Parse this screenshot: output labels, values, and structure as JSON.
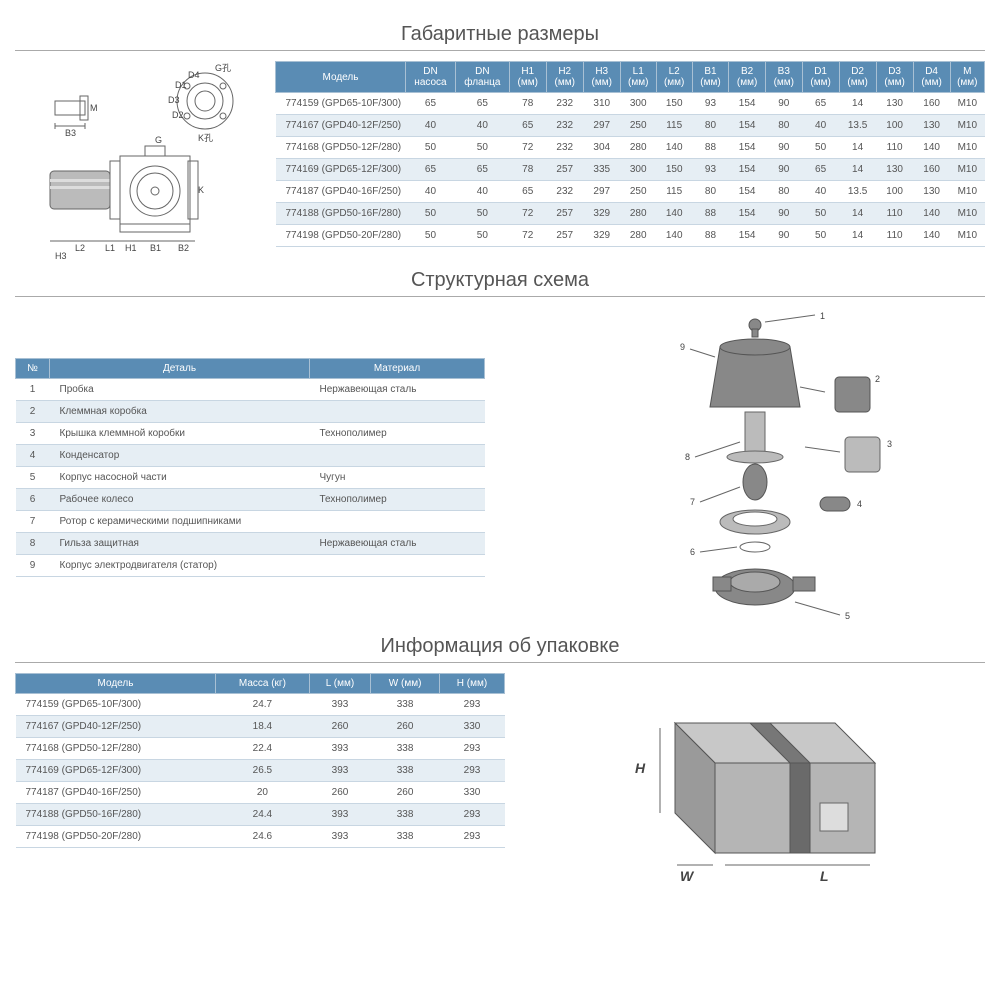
{
  "colors": {
    "header_bg": "#5a8cb4",
    "header_text": "#ffffff",
    "row_alt_bg": "#e6eef4",
    "border": "#c8d6e2",
    "title_text": "#555555",
    "body_text": "#555555"
  },
  "section1": {
    "title": "Габаритные размеры",
    "headers": [
      "Модель",
      "DN насоса",
      "DN фланца",
      "H1 (мм)",
      "H2 (мм)",
      "H3 (мм)",
      "L1 (мм)",
      "L2 (мм)",
      "B1 (мм)",
      "B2 (мм)",
      "B3 (мм)",
      "D1 (мм)",
      "D2 (мм)",
      "D3 (мм)",
      "D4 (мм)",
      "M (мм)"
    ],
    "rows": [
      [
        "774159 (GPD65-10F/300)",
        "65",
        "65",
        "78",
        "232",
        "310",
        "300",
        "150",
        "93",
        "154",
        "90",
        "65",
        "14",
        "130",
        "160",
        "M10"
      ],
      [
        "774167 (GPD40-12F/250)",
        "40",
        "40",
        "65",
        "232",
        "297",
        "250",
        "115",
        "80",
        "154",
        "80",
        "40",
        "13.5",
        "100",
        "130",
        "M10"
      ],
      [
        "774168 (GPD50-12F/280)",
        "50",
        "50",
        "72",
        "232",
        "304",
        "280",
        "140",
        "88",
        "154",
        "90",
        "50",
        "14",
        "110",
        "140",
        "M10"
      ],
      [
        "774169 (GPD65-12F/300)",
        "65",
        "65",
        "78",
        "257",
        "335",
        "300",
        "150",
        "93",
        "154",
        "90",
        "65",
        "14",
        "130",
        "160",
        "M10"
      ],
      [
        "774187 (GPD40-16F/250)",
        "40",
        "40",
        "65",
        "232",
        "297",
        "250",
        "115",
        "80",
        "154",
        "80",
        "40",
        "13.5",
        "100",
        "130",
        "M10"
      ],
      [
        "774188 (GPD50-16F/280)",
        "50",
        "50",
        "72",
        "257",
        "329",
        "280",
        "140",
        "88",
        "154",
        "90",
        "50",
        "14",
        "110",
        "140",
        "M10"
      ],
      [
        "774198 (GPD50-20F/280)",
        "50",
        "50",
        "72",
        "257",
        "329",
        "280",
        "140",
        "88",
        "154",
        "90",
        "50",
        "14",
        "110",
        "140",
        "M10"
      ]
    ],
    "diagram_labels": [
      "G孔",
      "D4",
      "D1",
      "D3",
      "D2",
      "K孔",
      "M",
      "B3",
      "G",
      "K",
      "L2",
      "L1",
      "H1",
      "H3",
      "B1",
      "B2"
    ]
  },
  "section2": {
    "title": "Структурная схема",
    "headers": [
      "№",
      "Деталь",
      "Материал"
    ],
    "rows": [
      [
        "1",
        "Пробка",
        "Нержавеющая сталь"
      ],
      [
        "2",
        "Клеммная коробка",
        ""
      ],
      [
        "3",
        "Крышка клеммной коробки",
        "Технополимер"
      ],
      [
        "4",
        "Конденсатор",
        ""
      ],
      [
        "5",
        "Корпус насосной части",
        "Чугун"
      ],
      [
        "6",
        "Рабочее колесо",
        "Технополимер"
      ],
      [
        "7",
        "Ротор с керамическими подшипниками",
        ""
      ],
      [
        "8",
        "Гильза защитная",
        "Нержавеющая сталь"
      ],
      [
        "9",
        "Корпус электродвигателя (статор)",
        ""
      ]
    ],
    "callouts": [
      "1",
      "2",
      "3",
      "4",
      "5",
      "6",
      "7",
      "8",
      "9"
    ]
  },
  "section3": {
    "title": "Информация об упаковке",
    "headers": [
      "Модель",
      "Масса (кг)",
      "L (мм)",
      "W (мм)",
      "H (мм)"
    ],
    "rows": [
      [
        "774159 (GPD65-10F/300)",
        "24.7",
        "393",
        "338",
        "293"
      ],
      [
        "774167 (GPD40-12F/250)",
        "18.4",
        "260",
        "260",
        "330"
      ],
      [
        "774168 (GPD50-12F/280)",
        "22.4",
        "393",
        "338",
        "293"
      ],
      [
        "774169 (GPD65-12F/300)",
        "26.5",
        "393",
        "338",
        "293"
      ],
      [
        "774187 (GPD40-16F/250)",
        "20",
        "260",
        "260",
        "330"
      ],
      [
        "774188 (GPD50-16F/280)",
        "24.4",
        "393",
        "338",
        "293"
      ],
      [
        "774198 (GPD50-20F/280)",
        "24.6",
        "393",
        "338",
        "293"
      ]
    ],
    "box_labels": {
      "H": "H",
      "W": "W",
      "L": "L"
    }
  }
}
